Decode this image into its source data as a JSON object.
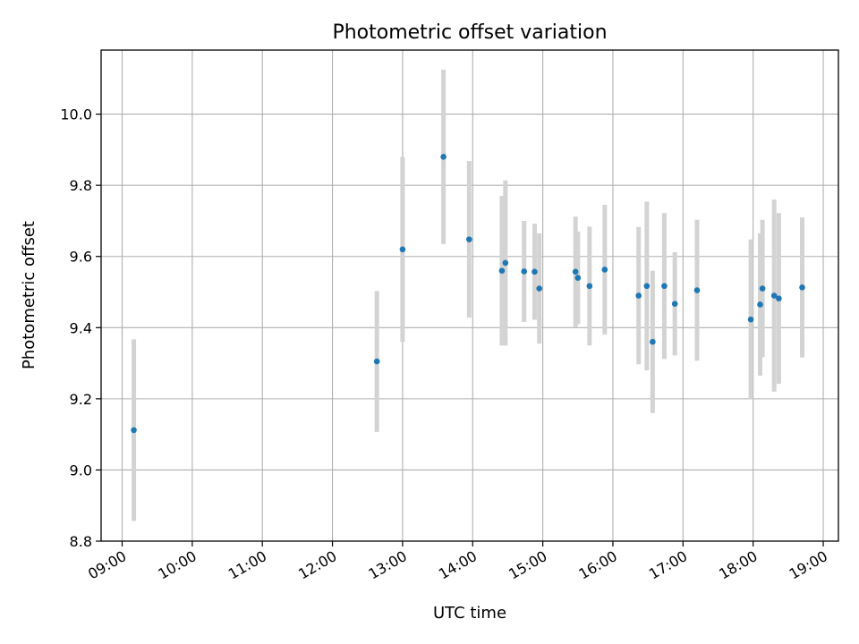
{
  "chart_data": {
    "type": "scatter",
    "title": "Photometric offset variation",
    "xlabel": "UTC time",
    "ylabel": "Photometric offset",
    "x_tick_labels": [
      "09:00",
      "10:00",
      "11:00",
      "12:00",
      "13:00",
      "14:00",
      "15:00",
      "16:00",
      "17:00",
      "18:00",
      "19:00"
    ],
    "y_ticks": [
      8.8,
      9.0,
      9.2,
      9.4,
      9.6,
      9.8,
      10.0
    ],
    "y_tick_labels": [
      "8.8",
      "9.0",
      "9.2",
      "9.4",
      "9.6",
      "9.8",
      "10.0"
    ],
    "xlim": [
      "08:42",
      "19:13"
    ],
    "ylim": [
      8.8,
      10.18
    ],
    "grid": true,
    "colors": {
      "marker": "#1f77b4",
      "errorbar": "#d3d3d3"
    },
    "points": [
      {
        "time": "09:10",
        "y": 9.112,
        "err": 0.255
      },
      {
        "time": "12:38",
        "y": 9.305,
        "err": 0.198
      },
      {
        "time": "13:00",
        "y": 9.62,
        "err": 0.26
      },
      {
        "time": "13:35",
        "y": 9.88,
        "err": 0.245
      },
      {
        "time": "13:57",
        "y": 9.648,
        "err": 0.22
      },
      {
        "time": "14:25",
        "y": 9.56,
        "err": 0.21
      },
      {
        "time": "14:28",
        "y": 9.582,
        "err": 0.232
      },
      {
        "time": "14:44",
        "y": 9.558,
        "err": 0.142
      },
      {
        "time": "14:53",
        "y": 9.557,
        "err": 0.135
      },
      {
        "time": "14:57",
        "y": 9.51,
        "err": 0.155
      },
      {
        "time": "15:28",
        "y": 9.557,
        "err": 0.155
      },
      {
        "time": "15:30",
        "y": 9.54,
        "err": 0.13
      },
      {
        "time": "15:40",
        "y": 9.517,
        "err": 0.167
      },
      {
        "time": "15:53",
        "y": 9.563,
        "err": 0.182
      },
      {
        "time": "16:22",
        "y": 9.49,
        "err": 0.193
      },
      {
        "time": "16:29",
        "y": 9.517,
        "err": 0.237
      },
      {
        "time": "16:34",
        "y": 9.36,
        "err": 0.2
      },
      {
        "time": "16:44",
        "y": 9.517,
        "err": 0.205
      },
      {
        "time": "16:53",
        "y": 9.467,
        "err": 0.145
      },
      {
        "time": "17:12",
        "y": 9.505,
        "err": 0.198
      },
      {
        "time": "17:58",
        "y": 9.423,
        "err": 0.225
      },
      {
        "time": "18:06",
        "y": 9.465,
        "err": 0.2
      },
      {
        "time": "18:08",
        "y": 9.51,
        "err": 0.193
      },
      {
        "time": "18:18",
        "y": 9.49,
        "err": 0.27
      },
      {
        "time": "18:22",
        "y": 9.482,
        "err": 0.24
      },
      {
        "time": "18:42",
        "y": 9.513,
        "err": 0.197
      }
    ]
  }
}
